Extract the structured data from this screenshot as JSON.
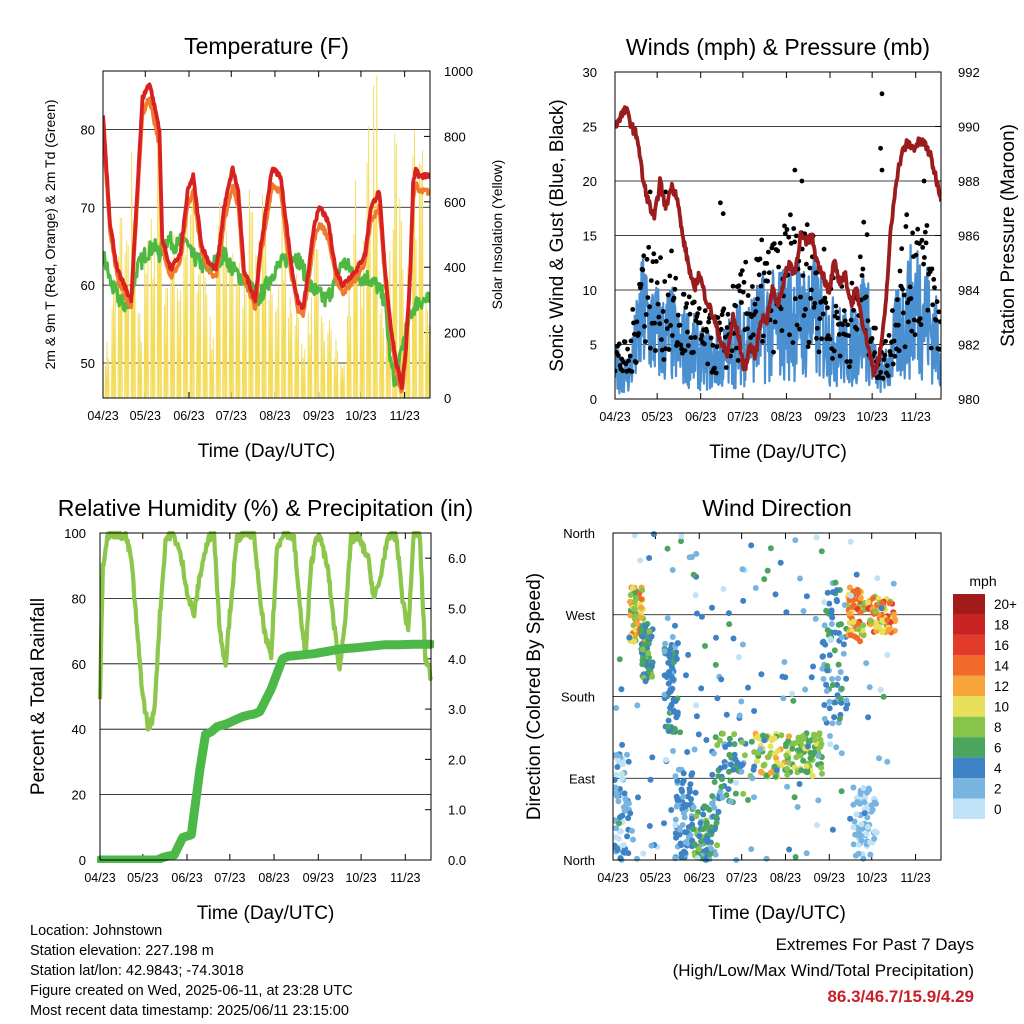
{
  "chart_data": [
    {
      "id": "temperature",
      "type": "line",
      "title": "Temperature (F)",
      "xlabel": "Time (Day/UTC)",
      "ylabel": "2m & 9m T (Red, Orange) & 2m Td (Green)",
      "y2label": "Solar Insolation (Yellow)",
      "x_ticks": [
        "04/23",
        "05/23",
        "06/23",
        "07/23",
        "08/23",
        "09/23",
        "10/23",
        "11/23"
      ],
      "ylim": [
        45.5,
        87.5
      ],
      "y_ticks": [
        50,
        60,
        70,
        80
      ],
      "y2lim": [
        0,
        1000
      ],
      "y2_ticks": [
        0,
        200,
        400,
        600,
        800,
        1000
      ],
      "grid": "horizontal",
      "series": [
        {
          "key": "t2m",
          "color": "#d92121",
          "x": [
            0,
            5,
            10,
            20,
            28,
            33,
            40,
            42,
            48,
            55,
            60,
            64,
            70,
            75,
            80,
            82,
            86,
            92,
            96,
            100,
            104,
            108,
            112,
            116,
            120,
            126,
            130,
            134,
            138,
            142,
            146,
            150,
            154,
            160,
            165,
            170,
            175,
            180,
            186,
            190,
            196,
            200,
            204,
            208,
            212,
            215,
            218,
            220,
            222,
            224,
            226
          ],
          "y": [
            82,
            68,
            62,
            58,
            84,
            86,
            80,
            66,
            62,
            64,
            72,
            74,
            65,
            63,
            62,
            64,
            70,
            75,
            72,
            62,
            60,
            58,
            65,
            70,
            75,
            74,
            68,
            62,
            58,
            57,
            62,
            68,
            70,
            68,
            62,
            60,
            61,
            62,
            64,
            70,
            72,
            62,
            55,
            50,
            47,
            52,
            62,
            73,
            75,
            74,
            74
          ]
        },
        {
          "key": "t9m",
          "color": "#f07b2d",
          "x": [
            0,
            5,
            10,
            20,
            28,
            33,
            40,
            42,
            48,
            55,
            60,
            64,
            70,
            75,
            80,
            82,
            86,
            92,
            96,
            100,
            104,
            108,
            112,
            116,
            120,
            126,
            130,
            134,
            138,
            142,
            146,
            150,
            154,
            160,
            165,
            170,
            175,
            180,
            186,
            190,
            196,
            200,
            204,
            208,
            212,
            215,
            218,
            220,
            222,
            224,
            226
          ],
          "y": [
            80,
            67,
            61,
            57,
            82,
            84,
            78,
            65,
            61,
            63,
            70,
            72,
            64,
            62,
            61,
            63,
            68,
            73,
            70,
            61,
            59,
            57,
            64,
            68,
            73,
            72,
            66,
            61,
            57,
            56,
            61,
            66,
            68,
            66,
            61,
            59,
            60,
            61,
            63,
            68,
            70,
            61,
            54,
            49,
            46,
            51,
            61,
            71,
            73,
            72,
            72
          ]
        },
        {
          "key": "td2m",
          "color": "#4fb843",
          "x": [
            0,
            6,
            12,
            18,
            24,
            30,
            36,
            40,
            46,
            52,
            58,
            62,
            68,
            74,
            80,
            86,
            92,
            98,
            104,
            110,
            116,
            122,
            128,
            134,
            140,
            146,
            152,
            158,
            164,
            170,
            176,
            182,
            188,
            194,
            200,
            204,
            208,
            212,
            216,
            220,
            224,
            226
          ],
          "y": [
            64,
            60,
            58,
            57,
            62,
            64,
            65,
            64,
            66,
            65,
            66,
            64,
            63,
            62,
            63,
            64,
            62,
            61,
            60,
            58,
            60,
            62,
            63,
            64,
            63,
            60,
            59,
            58,
            60,
            63,
            62,
            61,
            61,
            60,
            58,
            50,
            47,
            52,
            55,
            57,
            58,
            58
          ]
        }
      ],
      "insolation": {
        "key": "solar",
        "color": "#f4dc5a",
        "peaks": [
          180,
          420,
          620,
          560,
          820,
          300,
          500,
          600,
          900,
          350,
          540,
          480,
          640,
          700,
          560,
          500,
          260,
          620,
          700,
          600,
          500,
          420,
          680,
          560,
          640,
          450,
          380,
          600,
          420,
          380,
          200,
          320,
          480,
          260,
          360,
          220,
          120,
          380,
          700,
          500,
          860,
          1000,
          320,
          560,
          900,
          700,
          420,
          860,
          760,
          300
        ]
      }
    },
    {
      "id": "winds",
      "type": "scatter",
      "title": "Winds (mph) & Pressure (mb)",
      "xlabel": "Time (Day/UTC)",
      "ylabel": "Sonic Wind & Gust (Blue, Black)",
      "y2label": "Station Pressure (Maroon)",
      "x_ticks": [
        "04/23",
        "05/23",
        "06/23",
        "07/23",
        "08/23",
        "09/23",
        "10/23",
        "11/23"
      ],
      "ylim": [
        0,
        30
      ],
      "y_ticks": [
        0,
        5,
        10,
        15,
        20,
        25,
        30
      ],
      "y2lim": [
        980,
        992
      ],
      "y2_ticks": [
        980,
        982,
        984,
        986,
        988,
        990,
        992
      ],
      "grid": "horizontal",
      "series": [
        {
          "key": "wind",
          "color": "#4a90d0"
        },
        {
          "key": "gust",
          "color": "#000000"
        },
        {
          "key": "pressure",
          "color": "#9b1c1c",
          "x": [
            0,
            4,
            8,
            12,
            16,
            20,
            24,
            28,
            32,
            36,
            40,
            44,
            48,
            52,
            56,
            60,
            64,
            70,
            76,
            80,
            84,
            88,
            92,
            96,
            100,
            104,
            108,
            112,
            116,
            120,
            124,
            128,
            132,
            136,
            140,
            144,
            148,
            152,
            156,
            160,
            164,
            168,
            172,
            176,
            180,
            184,
            188,
            192,
            196,
            200,
            204,
            208,
            212,
            216,
            220,
            224,
            228,
            232
          ],
          "y": [
            990,
            990.4,
            990.6,
            990,
            989.6,
            988,
            987.2,
            986.6,
            988,
            987,
            987.8,
            987.5,
            986,
            985,
            984,
            984.6,
            983.8,
            983,
            982,
            981.6,
            983,
            982.3,
            981,
            982,
            981.6,
            983,
            982.9,
            984,
            983.5,
            984.3,
            985,
            984.6,
            986,
            985.7,
            986,
            985,
            984.6,
            983.8,
            985,
            984.3,
            984.5,
            983.5,
            984,
            982.9,
            982,
            981,
            981.5,
            983,
            986,
            988,
            989,
            989.4,
            989.2,
            989.4,
            989.4,
            989,
            988.2,
            987.4
          ]
        }
      ]
    },
    {
      "id": "humidity",
      "type": "line",
      "title": "Relative Humidity (%) & Precipitation (in)",
      "xlabel": "Time (Day/UTC)",
      "ylabel": "Percent & Total Rainfall",
      "x_ticks": [
        "04/23",
        "05/23",
        "06/23",
        "07/23",
        "08/23",
        "09/23",
        "10/23",
        "11/23"
      ],
      "ylim": [
        0,
        100
      ],
      "y_ticks": [
        0,
        20,
        40,
        60,
        80,
        100
      ],
      "y2lim": [
        0,
        6.5
      ],
      "y2_ticks": [
        "0.0",
        "1.0",
        "2.0",
        "3.0",
        "4.0",
        "5.0",
        "6.0"
      ],
      "grid": "horizontal",
      "series": [
        {
          "key": "rh",
          "color": "#8cc64a",
          "x": [
            0,
            2,
            5,
            8,
            12,
            18,
            22,
            26,
            30,
            34,
            38,
            42,
            46,
            50,
            54,
            58,
            62,
            66,
            70,
            74,
            78,
            80,
            84,
            88,
            92,
            96,
            100,
            104,
            108,
            112,
            116,
            120,
            124,
            128,
            132,
            136,
            140,
            144,
            148,
            152,
            156,
            160,
            164,
            168,
            172,
            176,
            180,
            184,
            188,
            192,
            196,
            200,
            204,
            208,
            212,
            216,
            220,
            224,
            228,
            232
          ],
          "y": [
            50,
            90,
            99,
            100,
            100,
            99,
            92,
            70,
            50,
            40,
            45,
            75,
            98,
            100,
            97,
            90,
            80,
            75,
            87,
            95,
            100,
            99,
            70,
            60,
            80,
            98,
            100,
            100,
            100,
            80,
            68,
            62,
            95,
            100,
            100,
            98,
            78,
            62,
            90,
            100,
            96,
            88,
            72,
            58,
            75,
            98,
            99,
            96,
            92,
            80,
            85,
            95,
            100,
            98,
            80,
            70,
            100,
            100,
            62,
            56
          ]
        },
        {
          "key": "precip",
          "color": "#4cb848",
          "x": [
            0,
            40,
            44,
            48,
            52,
            58,
            64,
            70,
            74,
            78,
            82,
            88,
            92,
            96,
            100,
            104,
            108,
            112,
            120,
            124,
            128,
            132,
            140,
            150,
            160,
            170,
            180,
            190,
            200,
            210,
            220,
            232
          ],
          "y": [
            0,
            0,
            0.05,
            0.08,
            0.1,
            0.45,
            0.5,
            1.8,
            2.5,
            2.55,
            2.65,
            2.7,
            2.75,
            2.8,
            2.85,
            2.88,
            2.9,
            2.95,
            3.4,
            3.7,
            4.0,
            4.05,
            4.07,
            4.1,
            4.15,
            4.2,
            4.22,
            4.25,
            4.28,
            4.28,
            4.29,
            4.29
          ]
        }
      ]
    },
    {
      "id": "direction",
      "type": "scatter",
      "title": "Wind Direction",
      "xlabel": "Time (Day/UTC)",
      "ylabel": "Direction (Colored By Speed)",
      "x_ticks": [
        "04/23",
        "05/23",
        "06/23",
        "07/23",
        "08/23",
        "09/23",
        "10/23",
        "11/23"
      ],
      "y_ticks": [
        "North",
        "East",
        "South",
        "West",
        "North"
      ],
      "ylim": [
        0,
        360
      ],
      "grid": "horizontal",
      "colorbar": {
        "title": "mph",
        "labels": [
          "20+",
          "18",
          "16",
          "14",
          "12",
          "10",
          "8",
          "6",
          "4",
          "2",
          "0"
        ],
        "colors": [
          "#a11b1b",
          "#c92323",
          "#e33b2b",
          "#f26a2a",
          "#f7a43b",
          "#e7e05a",
          "#88c44a",
          "#4aa55e",
          "#3d82c4",
          "#78b4e0",
          "#bfe2f6"
        ]
      },
      "clusters": [
        {
          "x": [
            0,
            12
          ],
          "y": [
            0,
            120
          ],
          "speed": [
            0,
            4
          ]
        },
        {
          "x": [
            12,
            22
          ],
          "y": [
            240,
            300
          ],
          "speed": [
            6,
            14
          ]
        },
        {
          "x": [
            20,
            28
          ],
          "y": [
            200,
            260
          ],
          "speed": [
            3,
            8
          ]
        },
        {
          "x": [
            36,
            46
          ],
          "y": [
            140,
            240
          ],
          "speed": [
            2,
            6
          ]
        },
        {
          "x": [
            44,
            56
          ],
          "y": [
            0,
            100
          ],
          "speed": [
            1,
            5
          ]
        },
        {
          "x": [
            56,
            74
          ],
          "y": [
            0,
            60
          ],
          "speed": [
            2,
            8
          ]
        },
        {
          "x": [
            70,
            100
          ],
          "y": [
            60,
            140
          ],
          "speed": [
            2,
            8
          ]
        },
        {
          "x": [
            100,
            130
          ],
          "y": [
            90,
            140
          ],
          "speed": [
            5,
            12
          ]
        },
        {
          "x": [
            130,
            148
          ],
          "y": [
            90,
            140
          ],
          "speed": [
            5,
            10
          ]
        },
        {
          "x": [
            148,
            166
          ],
          "y": [
            150,
            300
          ],
          "speed": [
            2,
            6
          ]
        },
        {
          "x": [
            166,
            178
          ],
          "y": [
            240,
            300
          ],
          "speed": [
            8,
            16
          ]
        },
        {
          "x": [
            170,
            186
          ],
          "y": [
            0,
            80
          ],
          "speed": [
            0,
            3
          ]
        },
        {
          "x": [
            180,
            200
          ],
          "y": [
            250,
            290
          ],
          "speed": [
            8,
            16
          ]
        },
        {
          "x": [
            0,
            200
          ],
          "y": [
            0,
            360
          ],
          "speed": [
            0,
            6
          ]
        }
      ]
    }
  ],
  "station": {
    "location": "Location: Johnstown",
    "elevation": "Station elevation: 227.198 m",
    "latlon": "Station lat/lon: 42.9843; -74.3018",
    "created": "Figure created on Wed, 2025-06-11, at 23:28 UTC",
    "latest": "Most recent data timestamp: 2025/06/11 23:15:00"
  },
  "extremes": {
    "title": "Extremes For Past 7 Days",
    "subtitle": "(High/Low/Max Wind/Total Precipitation)",
    "values": "86.3/46.7/15.9/4.29",
    "values_color": "#c8202a"
  }
}
